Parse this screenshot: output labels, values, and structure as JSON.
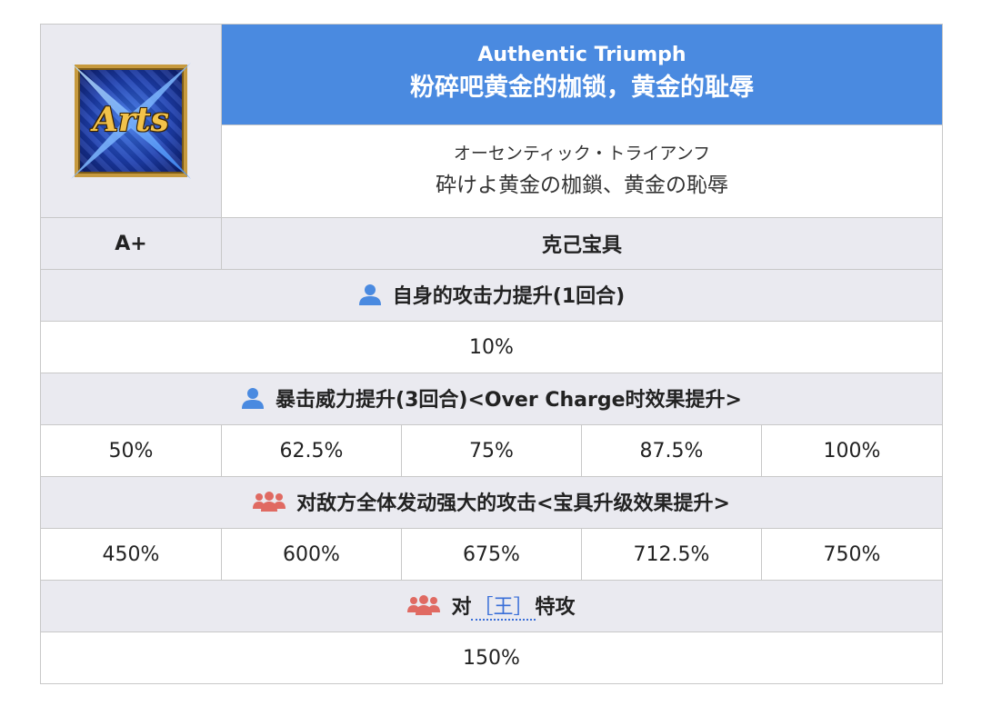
{
  "card": {
    "label": "Arts",
    "icon": "arts-card-icon",
    "colors": {
      "frame": "#c79a3e",
      "background": "#1d3fb0",
      "text": "#f2c24a"
    }
  },
  "noble_phantasm": {
    "name_en": "Authentic Triumph",
    "name_cn": "粉碎吧黄金的枷锁，黄金的耻辱",
    "reading_jp": "オーセンティック・トライアンフ",
    "name_jp": "砕けよ黄金の枷鎖、黄金の恥辱",
    "rank": "A+",
    "type": "克己宝具"
  },
  "effects": [
    {
      "icon": "person-icon",
      "icon_color": "#4a8ae0",
      "text": "自身的攻击力提升(1回合)",
      "values": [
        "10%"
      ]
    },
    {
      "icon": "person-icon",
      "icon_color": "#4a8ae0",
      "text": "暴击威力提升(3回合)<Over Charge时效果提升>",
      "values": [
        "50%",
        "62.5%",
        "75%",
        "87.5%",
        "100%"
      ]
    },
    {
      "icon": "group-icon",
      "icon_color": "#e06a62",
      "text": "对敌方全体发动强大的攻击<宝具升级效果提升>",
      "values": [
        "450%",
        "600%",
        "675%",
        "712.5%",
        "750%"
      ]
    },
    {
      "icon": "group-icon",
      "icon_color": "#e06a62",
      "text_prefix": "对",
      "trait": "［王］",
      "text_suffix": "特攻",
      "values": [
        "150%"
      ]
    }
  ],
  "colors": {
    "header_blue": "#4a8ae0",
    "row_grey": "#eaeaf0",
    "link_blue": "#3a6fd8",
    "border": "#c8c8c8"
  }
}
